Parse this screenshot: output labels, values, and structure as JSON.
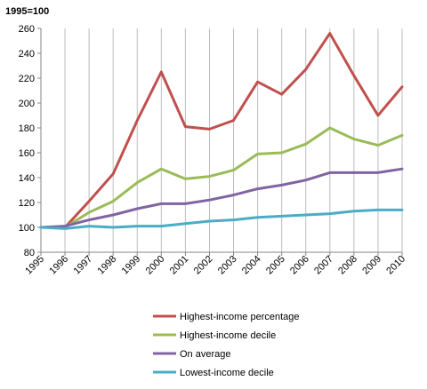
{
  "chart_data": {
    "type": "line",
    "unit_label": "1995=100",
    "x": [
      "1995",
      "1996",
      "1997",
      "1998",
      "1999",
      "2000",
      "2001",
      "2002",
      "2003",
      "2004",
      "2005",
      "2006",
      "2007",
      "2008",
      "2009",
      "2010"
    ],
    "ylim": [
      80,
      260
    ],
    "yticks": [
      80,
      100,
      120,
      140,
      160,
      180,
      200,
      220,
      240,
      260
    ],
    "grid": "vertical",
    "legend_position": "bottom",
    "series": [
      {
        "name": "Highest-income percentage",
        "color": "#c0504d",
        "values": [
          100,
          100,
          121,
          143,
          186,
          225,
          181,
          179,
          186,
          217,
          207,
          227,
          256,
          222,
          190,
          213
        ]
      },
      {
        "name": "Highest-income decile",
        "color": "#9bbb59",
        "values": [
          100,
          100,
          112,
          121,
          136,
          147,
          139,
          141,
          146,
          159,
          160,
          167,
          180,
          171,
          166,
          174
        ]
      },
      {
        "name": "On average",
        "color": "#8064a2",
        "values": [
          100,
          101,
          106,
          110,
          115,
          119,
          119,
          122,
          126,
          131,
          134,
          138,
          144,
          144,
          144,
          147
        ]
      },
      {
        "name": "Lowest-income decile",
        "color": "#4bacc6",
        "values": [
          100,
          99,
          101,
          100,
          101,
          101,
          103,
          105,
          106,
          108,
          109,
          110,
          111,
          113,
          114,
          114
        ]
      }
    ]
  }
}
